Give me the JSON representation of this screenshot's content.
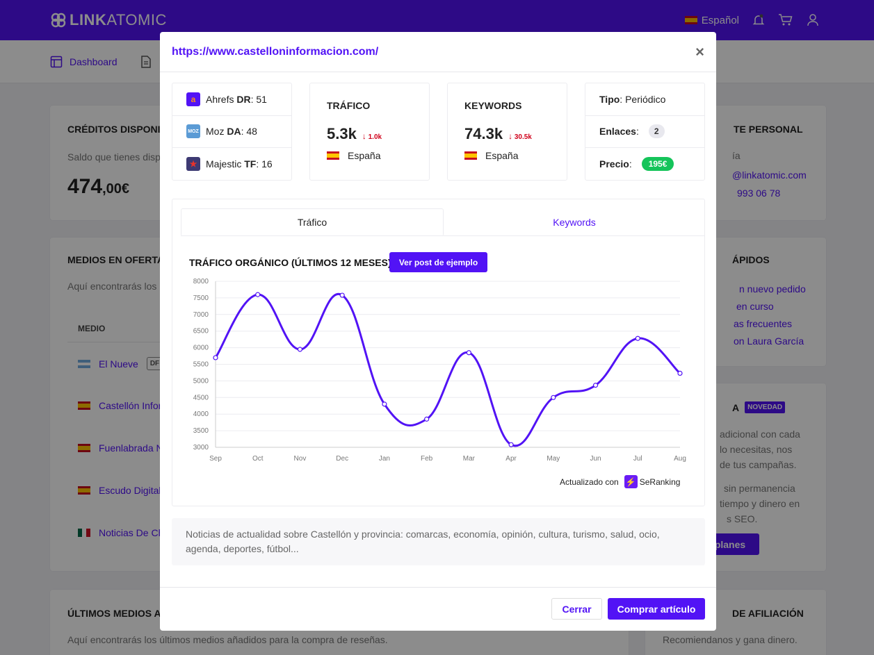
{
  "brand": {
    "name_bold": "LINK",
    "name_regular": "ATOMIC"
  },
  "header": {
    "language": "Español"
  },
  "subnav": {
    "dashboard": "Dashboard"
  },
  "bg": {
    "credits": {
      "title": "CRÉDITOS DISPONIB",
      "text": "Saldo que tienes disp",
      "amount": "474",
      "decimals": ",00€"
    },
    "offer": {
      "title": "MEDIOS EN OFERTA",
      "text": "Aquí encontrarás los",
      "col_media": "MEDIO",
      "rows": [
        {
          "name": "El Nueve",
          "tag": "DF"
        },
        {
          "name": "Castellón Infor"
        },
        {
          "name": "Fuenlabrada N"
        },
        {
          "name": "Escudo Digital"
        },
        {
          "name": "Noticias De Ch"
        }
      ]
    },
    "latest": {
      "title": "ÚLTIMOS MEDIOS AÑ",
      "text": "Aquí encontrarás los últimos medios añadidos para la compra de reseñas."
    },
    "agent": {
      "title": "TE PERSONAL",
      "line1": "ía",
      "email": "@linkatomic.com",
      "phone": "993 06 78"
    },
    "quick": {
      "title": "ÁPIDOS",
      "links": [
        "n nuevo pedido",
        "en curso",
        "as frecuentes",
        "on Laura García"
      ]
    },
    "news": {
      "title": "A",
      "badge": "NOVEDAD",
      "t1": "adicional con cada",
      "t2": "lo necesitas, nos",
      "t3": "de tus campañas.",
      "t4": "sin permanencia",
      "t5": "tiempo y dinero en",
      "t6": "s SEO.",
      "button": "planes"
    },
    "aff": {
      "title": "DE AFILIACIÓN",
      "text": "Recomiendanos y gana dinero."
    }
  },
  "modal": {
    "url": "https://www.castelloninformacion.com/",
    "close": "×",
    "metrics": [
      {
        "name": "Ahrefs",
        "key": "DR",
        "value": ": 51",
        "icon": "ahrefs-icon",
        "color": "#5213f5"
      },
      {
        "name": "Moz",
        "key": "DA",
        "value": ": 48",
        "icon": "moz-icon",
        "color": "#5b9bd5"
      },
      {
        "name": "Majestic",
        "key": "TF",
        "value": ": 16",
        "icon": "majestic-icon",
        "color": "#3d3a73"
      }
    ],
    "traffic": {
      "label": "TRÁFICO",
      "value": "5.3k",
      "delta": "1.0k",
      "country": "España"
    },
    "keywords": {
      "label": "KEYWORDS",
      "value": "74.3k",
      "delta": "30.5k",
      "country": "España"
    },
    "info": {
      "type_label": "Tipo",
      "type_value": ": Periódico",
      "links_label": "Enlaces",
      "links_value": "2",
      "price_label": "Precio",
      "price_value": "195€"
    },
    "tabs": [
      "Tráfico",
      "Keywords"
    ],
    "chart_title": "TRÁFICO ORGÁNICO (ÚLTIMOS 12 MESES)",
    "example_button": "Ver post de ejemplo",
    "updated_label": "Actualizado con",
    "provider": "SeRanking",
    "description": "Noticias de actualidad sobre Castellón y provincia: comarcas, economía, opinión, cultura, turismo, salud, ocio, agenda, deportes, fútbol...",
    "buttons": {
      "close": "Cerrar",
      "buy": "Comprar artículo"
    }
  },
  "chart_data": {
    "type": "line",
    "categories": [
      "Sep",
      "Oct",
      "Nov",
      "Dec",
      "Jan",
      "Feb",
      "Mar",
      "Apr",
      "May",
      "Jun",
      "Jul",
      "Aug"
    ],
    "values": [
      5700,
      7600,
      5950,
      7580,
      4300,
      3850,
      5850,
      3080,
      4500,
      4870,
      6280,
      5230
    ],
    "ylim": [
      3000,
      8000
    ],
    "yticks": [
      3000,
      3500,
      4000,
      4500,
      5000,
      5500,
      6000,
      6500,
      7000,
      7500,
      8000
    ],
    "color": "#5213f5",
    "grid": true
  }
}
